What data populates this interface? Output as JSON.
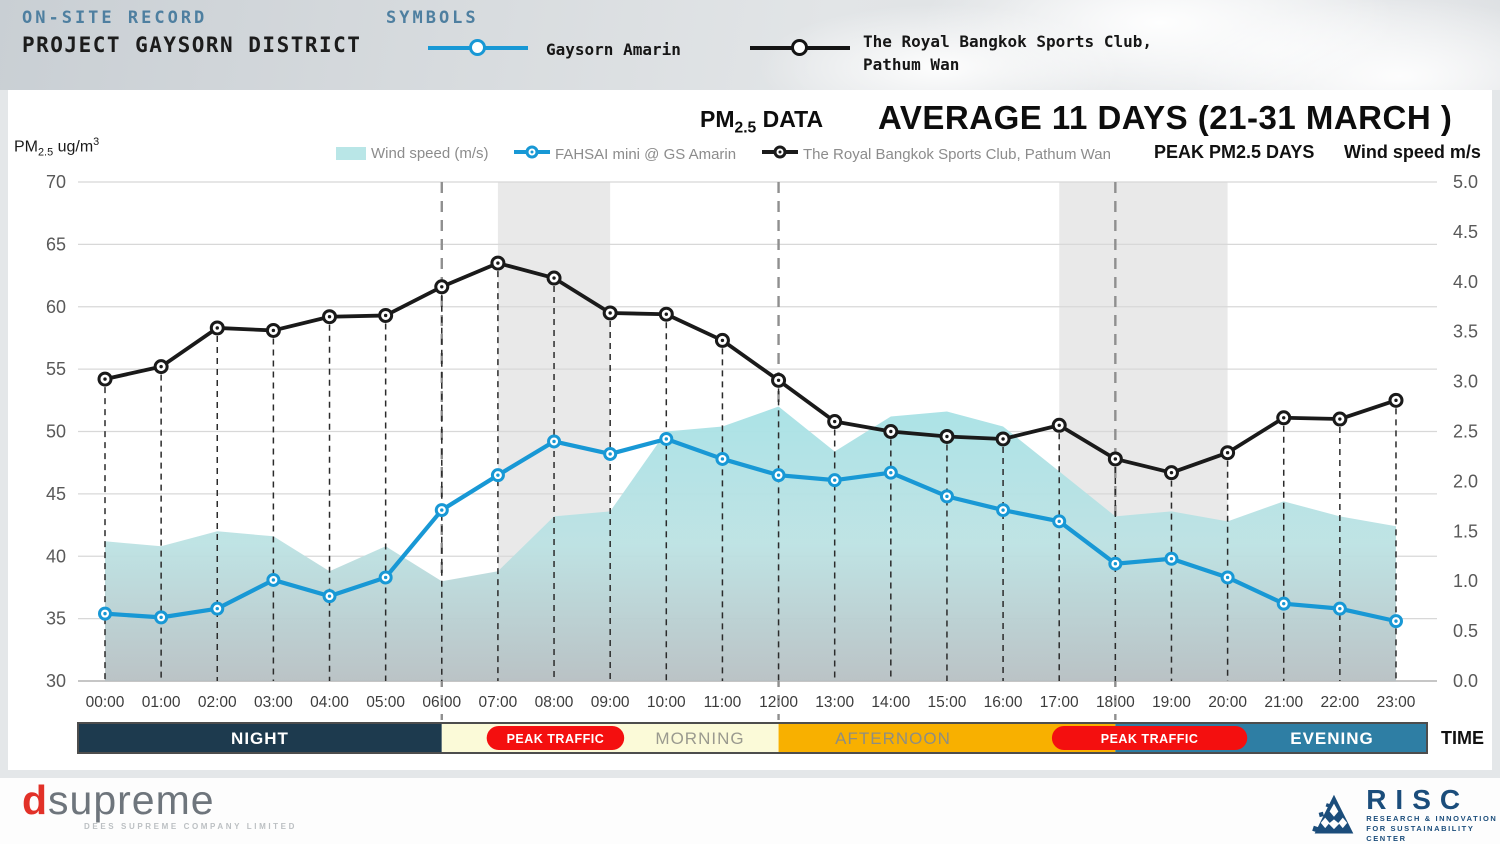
{
  "header": {
    "kicker": "ON-SITE RECORD",
    "project": "PROJECT GAYSORN DISTRICT",
    "symbols_title": "SYMBOLS",
    "symbol1_label": "Gaysorn Amarin",
    "symbol1_color": "#1898d5",
    "symbol2_label_line1": "The Royal Bangkok Sports Club,",
    "symbol2_label_line2": "Pathum Wan",
    "symbol2_color": "#141414",
    "accent_text_color": "#4e7fa0"
  },
  "panel": {
    "y_axis_unit": {
      "pm": "PM",
      "sub": "2.5",
      "mid": " ug/m",
      "sup": "3"
    },
    "subtitle": {
      "pm": "PM",
      "sub": "2.5",
      "rest": " DATA"
    },
    "title": "AVERAGE 11 DAYS (21-31 MARCH )",
    "peak_label": "PEAK PM2.5 DAYS",
    "right_axis_title": "Wind speed m/s",
    "time_label": "TIME"
  },
  "chart_data": {
    "type": "line+area",
    "x": [
      "00:00",
      "01:00",
      "02:00",
      "03:00",
      "04:00",
      "05:00",
      "06:00",
      "07:00",
      "08:00",
      "09:00",
      "10:00",
      "11:00",
      "12:00",
      "13:00",
      "14:00",
      "15:00",
      "16:00",
      "17:00",
      "18:00",
      "19:00",
      "20:00",
      "21:00",
      "22:00",
      "23:00"
    ],
    "series": [
      {
        "name": "Wind speed (m/s)",
        "type": "area",
        "axis": "right",
        "color": "#b9e6e7",
        "values": [
          1.4,
          1.35,
          1.5,
          1.45,
          1.1,
          1.35,
          1.0,
          1.1,
          1.65,
          1.7,
          2.5,
          2.55,
          2.75,
          2.3,
          2.65,
          2.7,
          2.55,
          2.1,
          1.65,
          1.7,
          1.6,
          1.8,
          1.65,
          1.55
        ]
      },
      {
        "name": "FAHSAI mini @ GS Amarin",
        "type": "line",
        "axis": "left",
        "color": "#1898d5",
        "values": [
          35.4,
          35.1,
          35.8,
          38.1,
          36.8,
          38.3,
          43.7,
          46.5,
          49.2,
          48.2,
          49.4,
          47.8,
          46.5,
          46.1,
          46.7,
          44.8,
          43.7,
          42.8,
          39.4,
          39.8,
          38.3,
          36.2,
          35.8,
          34.8
        ]
      },
      {
        "name": "The Royal Bangkok Sports Club, Pathum Wan",
        "type": "line",
        "axis": "left",
        "color": "#1a1a1a",
        "values": [
          54.2,
          55.2,
          58.3,
          58.1,
          59.2,
          59.3,
          61.6,
          63.5,
          62.3,
          59.5,
          59.4,
          57.3,
          54.1,
          50.8,
          50.0,
          49.6,
          49.4,
          50.5,
          47.8,
          46.7,
          48.3,
          51.1,
          51.0,
          52.5
        ]
      }
    ],
    "left_axis": {
      "min": 30,
      "max": 70,
      "step": 5,
      "label": "PM2.5 ug/m3"
    },
    "right_axis": {
      "min": 0.0,
      "max": 5.0,
      "step": 0.5,
      "label": "Wind speed m/s"
    },
    "grid": true,
    "legend_position": "top",
    "peak_bands_hours": [
      [
        7,
        9
      ],
      [
        17,
        20
      ]
    ],
    "divider_hours": [
      6,
      12,
      18
    ],
    "band_color": "#e9e9e9"
  },
  "timeline": {
    "segments": [
      {
        "label": "NIGHT",
        "endHour": 6,
        "bg": "#1d3a4e",
        "fg": "#ffffff",
        "bold": true,
        "labelX": 260
      },
      {
        "label": "MORNING",
        "endHour": 12,
        "bg": "#fbfad8",
        "fg": "#9a9a8f",
        "bold": false,
        "labelX": 700
      },
      {
        "label": "AFTERNOON",
        "endHour": 18,
        "bg": "#f8b000",
        "fg": "#8e8e82",
        "bold": false,
        "labelX": 893
      },
      {
        "label": "EVENING",
        "endHour": 24,
        "bg": "#2e7ea4",
        "fg": "#ffffff",
        "bold": true,
        "labelX": 1332
      }
    ],
    "pills": [
      {
        "label": "PEAK TRAFFIC",
        "fromHour": 6.8,
        "toHour": 9.25
      },
      {
        "label": "PEAK TRAFFIC",
        "fromHour": 16.87,
        "toHour": 20.35
      }
    ],
    "pill_color": "#f40f0f",
    "pill_text_color": "#ffffff"
  },
  "footer": {
    "dsupreme": {
      "d": "d",
      "rest": "supreme",
      "caption": "DEES SUPREME COMPANY LIMITED",
      "red": "#e23128",
      "gray": "#6e757c"
    },
    "risc": {
      "name": "RISC",
      "caption1": "RESEARCH & INNOVATION",
      "caption2": "FOR SUSTAINABILITY CENTER",
      "navy": "#1b4d7b"
    }
  }
}
